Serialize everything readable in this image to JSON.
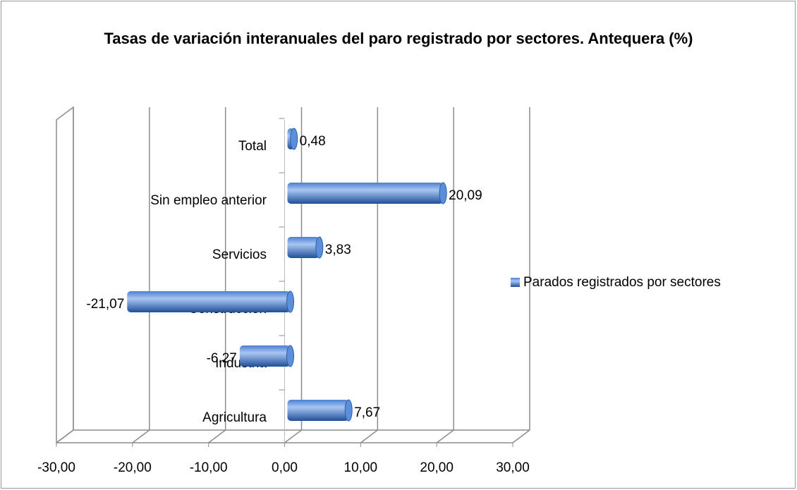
{
  "chart_data": {
    "type": "bar",
    "orientation": "horizontal",
    "title": "Tasas de variación interanuales del paro registrado por sectores. Antequera (%)",
    "categories": [
      "Agricultura",
      "Industria",
      "Construcción",
      "Servicios",
      "Sin empleo anterior",
      "Total"
    ],
    "series": [
      {
        "name": "Parados registrados por sectores",
        "color": "#4a7fd2",
        "values": [
          7.67,
          -6.27,
          -21.07,
          3.83,
          20.09,
          0.48
        ],
        "value_labels": [
          "7,67",
          "-6,27",
          "-21,07",
          "3,83",
          "20,09",
          "0,48"
        ]
      }
    ],
    "xlim": [
      -30,
      30
    ],
    "xticks": [
      {
        "value": -30,
        "label": "-30,00"
      },
      {
        "value": -20,
        "label": "-20,00"
      },
      {
        "value": -10,
        "label": "-10,00"
      },
      {
        "value": 0,
        "label": "0,00"
      },
      {
        "value": 10,
        "label": "10,00"
      },
      {
        "value": 20,
        "label": "20,00"
      },
      {
        "value": 30,
        "label": "30,00"
      }
    ],
    "grid": true,
    "legend": "right"
  }
}
